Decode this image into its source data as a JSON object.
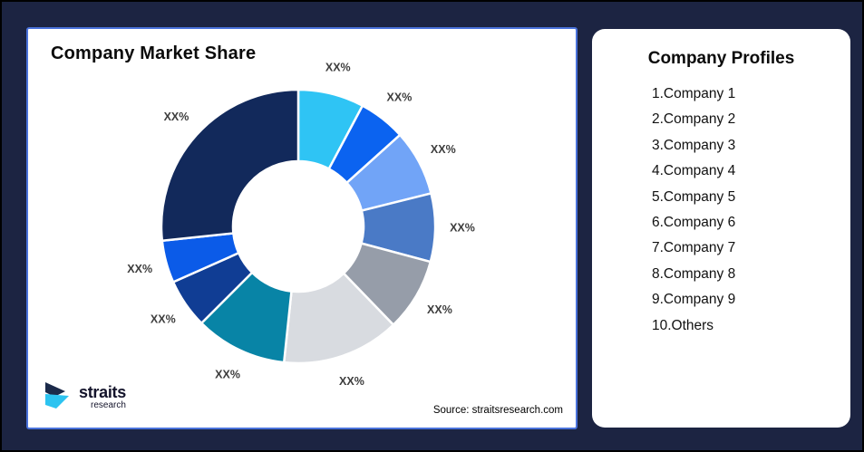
{
  "background_color": "#1C2442",
  "left_card": {
    "title": "Company Market Share",
    "source": "Source: straitsresearch.com",
    "logo": {
      "brand": "straits",
      "sub": "research"
    },
    "border_color": "#4A72DB"
  },
  "right_card": {
    "title": "Company Profiles",
    "items": [
      "1.Company 1",
      "2.Company 2",
      "3.Company 3",
      "4.Company 4",
      "5.Company 5",
      "6.Company 6",
      "7.Company 7",
      "8.Company 8",
      "9.Company 9",
      "10.Others"
    ]
  },
  "chart_data": {
    "type": "pie",
    "subtype": "donut",
    "title": "Company Market Share",
    "categories": [
      "Company 1",
      "Company 2",
      "Company 3",
      "Company 4",
      "Company 5",
      "Company 6",
      "Company 7",
      "Company 8",
      "Company 9",
      "Others"
    ],
    "slice_labels": [
      "XX%",
      "XX%",
      "XX%",
      "XX%",
      "XX%",
      "XX%",
      "XX%",
      "XX%",
      "XX%",
      "XX%"
    ],
    "values_deg_estimated": [
      28,
      20,
      28,
      29,
      31,
      50,
      39,
      21,
      18,
      96
    ],
    "colors": [
      "#2FC4F4",
      "#0B63F0",
      "#71A4F7",
      "#4A7AC6",
      "#969DA9",
      "#D8DBE0",
      "#0884A6",
      "#103D94",
      "#0B5BE8",
      "#12295B"
    ],
    "start_angle_deg": 0,
    "clockwise": true,
    "inner_radius_ratio": 0.48,
    "legend_position": "none",
    "source_note": "Source: straitsresearch.com"
  }
}
